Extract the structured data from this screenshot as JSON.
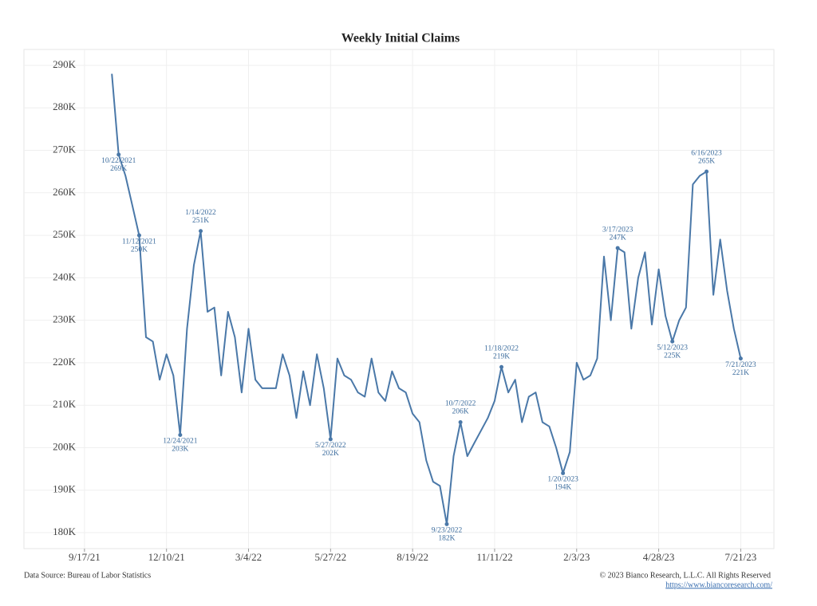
{
  "chart_data": {
    "type": "line",
    "title": "Weekly Initial Claims",
    "x": [
      "10/15/2021",
      "10/22/2021",
      "10/29/2021",
      "11/5/2021",
      "11/12/2021",
      "11/19/2021",
      "11/26/2021",
      "12/3/2021",
      "12/10/2021",
      "12/17/2021",
      "12/24/2021",
      "12/31/2021",
      "1/7/2022",
      "1/14/2022",
      "1/21/2022",
      "1/28/2022",
      "2/4/2022",
      "2/11/2022",
      "2/18/2022",
      "2/25/2022",
      "3/4/2022",
      "3/11/2022",
      "3/18/2022",
      "3/25/2022",
      "4/1/2022",
      "4/8/2022",
      "4/15/2022",
      "4/22/2022",
      "4/29/2022",
      "5/6/2022",
      "5/13/2022",
      "5/20/2022",
      "5/27/2022",
      "6/3/2022",
      "6/10/2022",
      "6/17/2022",
      "6/24/2022",
      "7/1/2022",
      "7/8/2022",
      "7/15/2022",
      "7/22/2022",
      "7/29/2022",
      "8/5/2022",
      "8/12/2022",
      "8/19/2022",
      "8/26/2022",
      "9/2/2022",
      "9/9/2022",
      "9/16/2022",
      "9/23/2022",
      "9/30/2022",
      "10/7/2022",
      "10/14/2022",
      "10/21/2022",
      "10/28/2022",
      "11/4/2022",
      "11/11/2022",
      "11/18/2022",
      "11/25/2022",
      "12/2/2022",
      "12/9/2022",
      "12/16/2022",
      "12/23/2022",
      "12/30/2022",
      "1/6/2023",
      "1/13/2023",
      "1/20/2023",
      "1/27/2023",
      "2/3/2023",
      "2/10/2023",
      "2/17/2023",
      "2/24/2023",
      "3/3/2023",
      "3/10/2023",
      "3/17/2023",
      "3/24/2023",
      "3/31/2023",
      "4/7/2023",
      "4/14/2023",
      "4/21/2023",
      "4/28/2023",
      "5/5/2023",
      "5/12/2023",
      "5/19/2023",
      "5/26/2023",
      "6/2/2023",
      "6/9/2023",
      "6/16/2023",
      "6/23/2023",
      "6/30/2023",
      "7/7/2023",
      "7/14/2023",
      "7/21/2023"
    ],
    "series": [
      {
        "name": "Initial Claims",
        "color": "#4a78a8",
        "values": [
          288,
          269,
          264,
          257,
          250,
          226,
          225,
          216,
          222,
          217,
          203,
          228,
          243,
          251,
          232,
          233,
          217,
          232,
          226,
          213,
          228,
          216,
          214,
          214,
          214,
          222,
          217,
          207,
          218,
          210,
          222,
          214,
          202,
          221,
          217,
          216,
          213,
          212,
          221,
          213,
          211,
          218,
          214,
          213,
          208,
          206,
          197,
          192,
          191,
          182,
          198,
          206,
          198,
          201,
          204,
          207,
          211,
          219,
          213,
          216,
          206,
          212,
          213,
          206,
          205,
          200,
          194,
          199,
          220,
          216,
          217,
          221,
          245,
          230,
          247,
          246,
          228,
          240,
          246,
          229,
          242,
          231,
          225,
          230,
          233,
          262,
          264,
          265,
          236,
          249,
          237,
          228,
          221
        ],
        "value_labels": [
          null,
          "269K",
          null,
          null,
          "250K",
          null,
          null,
          null,
          null,
          null,
          "203K",
          null,
          null,
          "251K",
          null,
          null,
          null,
          null,
          null,
          null,
          null,
          null,
          null,
          null,
          null,
          null,
          null,
          null,
          null,
          null,
          null,
          null,
          "202K",
          null,
          null,
          null,
          null,
          null,
          null,
          null,
          null,
          null,
          null,
          null,
          null,
          null,
          null,
          null,
          null,
          "182K",
          null,
          "206K",
          null,
          null,
          null,
          null,
          null,
          "219K",
          null,
          null,
          null,
          null,
          null,
          null,
          null,
          null,
          "194K",
          null,
          null,
          null,
          null,
          null,
          null,
          null,
          "247K",
          null,
          null,
          null,
          null,
          null,
          null,
          null,
          "225K",
          null,
          null,
          null,
          null,
          "265K",
          null,
          null,
          null,
          null,
          "221K"
        ]
      }
    ],
    "xlim": [
      "7/17/2021",
      "8/24/2023"
    ],
    "xticks": [
      {
        "value": "9/17/2021",
        "label": "9/17/21"
      },
      {
        "value": "12/10/2021",
        "label": "12/10/21"
      },
      {
        "value": "3/4/2022",
        "label": "3/4/22"
      },
      {
        "value": "5/27/2022",
        "label": "5/27/22"
      },
      {
        "value": "8/19/2022",
        "label": "8/19/22"
      },
      {
        "value": "11/11/2022",
        "label": "11/11/22"
      },
      {
        "value": "2/3/2023",
        "label": "2/3/23"
      },
      {
        "value": "4/28/2023",
        "label": "4/28/23"
      },
      {
        "value": "7/21/2023",
        "label": "7/21/23"
      }
    ],
    "ylim": [
      176.25,
      293.75
    ],
    "yticks": [
      {
        "value": 180,
        "label": "180K"
      },
      {
        "value": 190,
        "label": "190K"
      },
      {
        "value": 200,
        "label": "200K"
      },
      {
        "value": 210,
        "label": "210K"
      },
      {
        "value": 220,
        "label": "220K"
      },
      {
        "value": 230,
        "label": "230K"
      },
      {
        "value": 240,
        "label": "240K"
      },
      {
        "value": 250,
        "label": "250K"
      },
      {
        "value": 260,
        "label": "260K"
      },
      {
        "value": 270,
        "label": "270K"
      },
      {
        "value": 280,
        "label": "280K"
      },
      {
        "value": 290,
        "label": "290K"
      }
    ],
    "grid": true
  },
  "footer": {
    "source": "Data Source: Bureau of Labor Statistics",
    "copyright": "© 2023 Bianco Research, L.L.C. All Rights Reserved",
    "link": "https://www.biancoresearch.com/"
  }
}
